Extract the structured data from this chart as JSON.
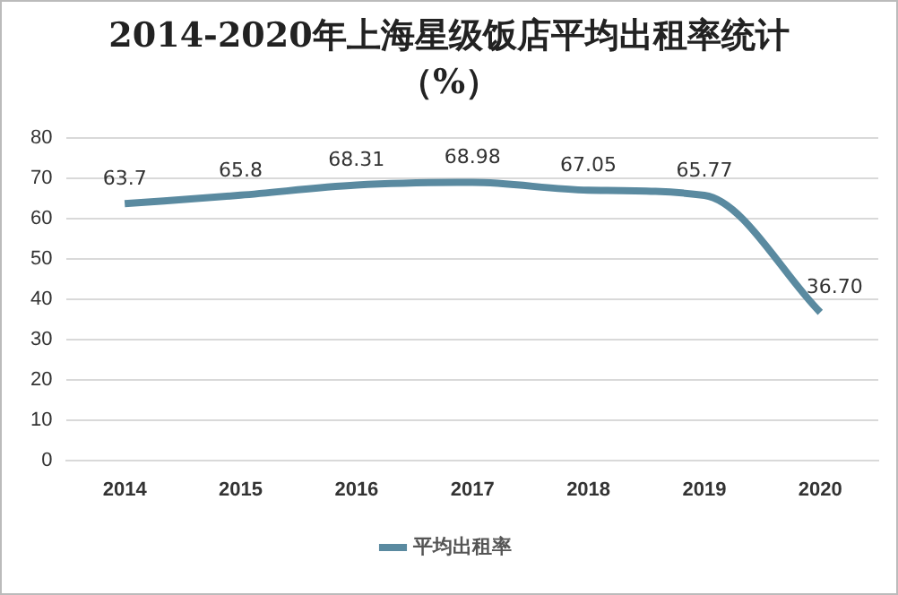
{
  "chart_data": {
    "type": "line",
    "title": "2014-2020年上海星级饭店平均出租率统计（%）",
    "categories": [
      "2014",
      "2015",
      "2016",
      "2017",
      "2018",
      "2019",
      "2020"
    ],
    "series": [
      {
        "name": "平均出租率",
        "color": "#5a8aa0",
        "values": [
          63.7,
          65.8,
          68.31,
          68.98,
          67.05,
          65.77,
          36.7
        ],
        "value_labels": [
          "63.7",
          "65.8",
          "68.31",
          "68.98",
          "67.05",
          "65.77",
          "36.70"
        ]
      }
    ],
    "ylim": [
      0,
      80
    ],
    "yticks": [
      0,
      10,
      20,
      30,
      40,
      50,
      60,
      70,
      80
    ],
    "grid": "y",
    "legend": "bottom",
    "marker": "none",
    "line_style": "solid"
  }
}
